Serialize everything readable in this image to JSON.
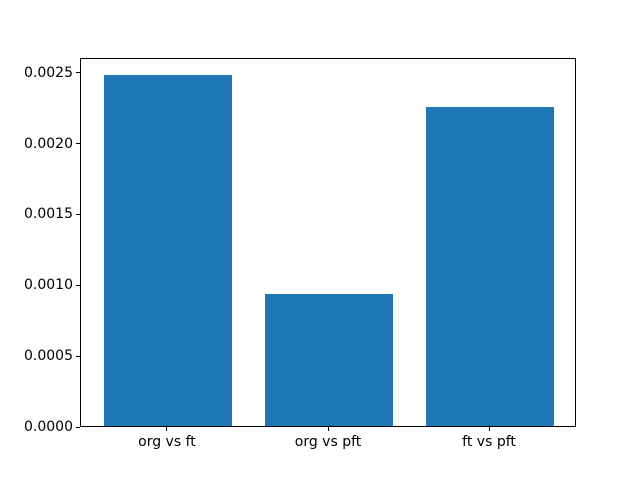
{
  "chart_data": {
    "type": "bar",
    "title": "",
    "categories": [
      "org vs ft",
      "org vs pft",
      "ft vs pft"
    ],
    "x": [
      0,
      1,
      2
    ],
    "values": [
      0.00248,
      0.00093,
      0.00225
    ],
    "bar_width": 0.8,
    "xlim": [
      -0.54,
      2.54
    ],
    "ylim": [
      0,
      0.002604
    ],
    "yticks": [
      {
        "value": 0.0,
        "label": "0.0000"
      },
      {
        "value": 0.0005,
        "label": "0.0005"
      },
      {
        "value": 0.001,
        "label": "0.0010"
      },
      {
        "value": 0.0015,
        "label": "0.0015"
      },
      {
        "value": 0.002,
        "label": "0.0020"
      },
      {
        "value": 0.0025,
        "label": "0.0025"
      }
    ],
    "xlabel": "",
    "ylabel": "",
    "legend_position": "none",
    "grid": false,
    "bar_color": "#1f77b4",
    "axis_color": "#000000",
    "background_color": "#ffffff"
  }
}
